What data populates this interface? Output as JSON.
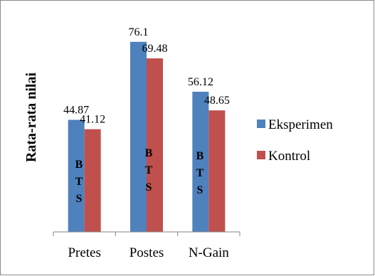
{
  "chart_data": {
    "type": "bar",
    "categories": [
      "Pretes",
      "Postes",
      "N-Gain"
    ],
    "series": [
      {
        "name": "Eksperimen",
        "values": [
          44.87,
          76.1,
          56.12
        ],
        "color": "#4F81BD"
      },
      {
        "name": "Kontrol",
        "values": [
          41.12,
          69.48,
          48.65
        ],
        "color": "#C0504D"
      }
    ],
    "value_labels": [
      [
        "44.87",
        "76.1",
        "56.12"
      ],
      [
        "41.12",
        "69.48",
        "48.65"
      ]
    ],
    "ylabel": "Rata-rata nilai",
    "ylim": [
      0,
      90
    ],
    "grid": false,
    "legend_position": "right",
    "watermark_letters": [
      "B",
      "T",
      "S"
    ]
  }
}
